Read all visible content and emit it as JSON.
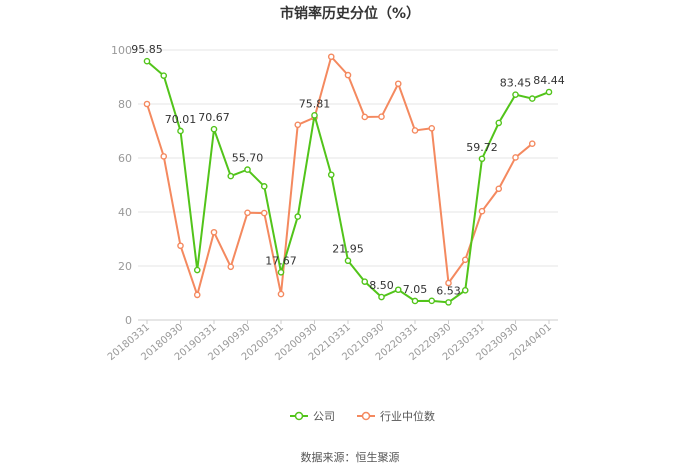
{
  "chart_data": {
    "type": "line",
    "title": "市销率历史分位（%）",
    "xlabel": "",
    "ylabel": "",
    "ylim": [
      0,
      100
    ],
    "yticks": [
      0,
      20,
      40,
      60,
      80,
      100
    ],
    "grid": true,
    "legend_position": "bottom",
    "x_tick_labels": [
      "20180331",
      "20180930",
      "20190331",
      "20190930",
      "20200331",
      "20200930",
      "20210331",
      "20210930",
      "20220331",
      "20220930",
      "20230331",
      "20230930",
      "20240401"
    ],
    "x": [
      "20180331",
      "20180630",
      "20180930",
      "20181231",
      "20190331",
      "20190630",
      "20190930",
      "20191231",
      "20200331",
      "20200630",
      "20200930",
      "20201231",
      "20210331",
      "20210630",
      "20210930",
      "20211231",
      "20220331",
      "20220630",
      "20220930",
      "20221231",
      "20230331",
      "20230630",
      "20230930",
      "20231231",
      "20240401"
    ],
    "series": [
      {
        "name": "公司",
        "color": "#52c41a",
        "values": [
          95.85,
          90.5,
          70.01,
          18.5,
          70.67,
          53.3,
          55.7,
          49.5,
          17.67,
          38.3,
          75.81,
          53.8,
          21.95,
          14.2,
          8.5,
          11.2,
          7.05,
          7.1,
          6.53,
          11.0,
          59.72,
          73.0,
          83.45,
          82.0,
          84.44
        ],
        "labeled_points": {
          "0": "95.85",
          "2": "70.01",
          "4": "70.67",
          "6": "55.70",
          "8": "17.67",
          "10": "75.81",
          "12": "21.95",
          "14": "8.50",
          "16": "7.05",
          "18": "6.53",
          "20": "59.72",
          "22": "83.45",
          "24": "84.44"
        }
      },
      {
        "name": "行业中位数",
        "color": "#f4895f",
        "values": [
          80.0,
          60.6,
          27.5,
          9.3,
          32.5,
          19.7,
          39.7,
          39.6,
          9.6,
          72.3,
          75.0,
          97.5,
          90.7,
          75.2,
          75.3,
          87.5,
          70.2,
          71.0,
          13.7,
          22.3,
          40.3,
          48.6,
          60.2,
          65.3,
          null
        ]
      }
    ]
  },
  "source": "数据来源：恒生聚源"
}
